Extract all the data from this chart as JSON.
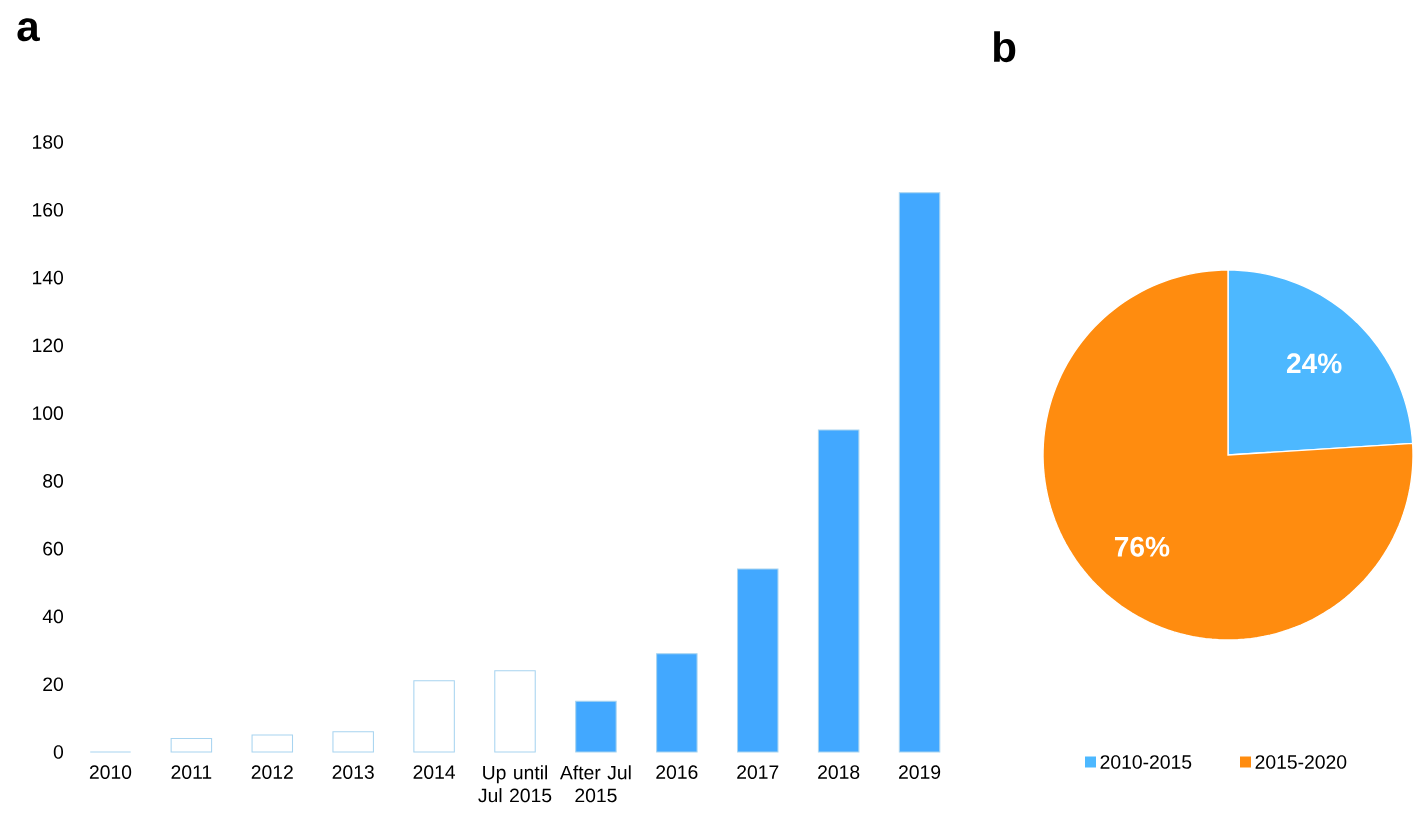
{
  "chart_data": [
    {
      "type": "bar",
      "title": "a",
      "categories": [
        "2010",
        "2011",
        "2012",
        "2013",
        "2014",
        "Up until Jul 2015",
        "After Jul 2015",
        "2016",
        "2017",
        "2018",
        "2019"
      ],
      "values": [
        0,
        4,
        5,
        6,
        21,
        24,
        15,
        29,
        54,
        95,
        165
      ],
      "colors": [
        "#ffffff",
        "#ffffff",
        "#ffffff",
        "#ffffff",
        "#ffffff",
        "#ffffff",
        "#42a8ff",
        "#42a8ff",
        "#42a8ff",
        "#42a8ff",
        "#42a8ff"
      ],
      "ylim": [
        0,
        180
      ],
      "yticks": [
        0,
        20,
        40,
        60,
        80,
        100,
        120,
        140,
        160,
        180
      ],
      "grid": false
    },
    {
      "type": "pie",
      "title": "b",
      "categories": [
        "2010-2015",
        "2015-2020"
      ],
      "values": [
        24,
        76
      ],
      "colors": [
        "#4db8ff",
        "#ff8c0f"
      ],
      "value_labels": [
        "24%",
        "76%"
      ],
      "legend": "bottom"
    }
  ]
}
